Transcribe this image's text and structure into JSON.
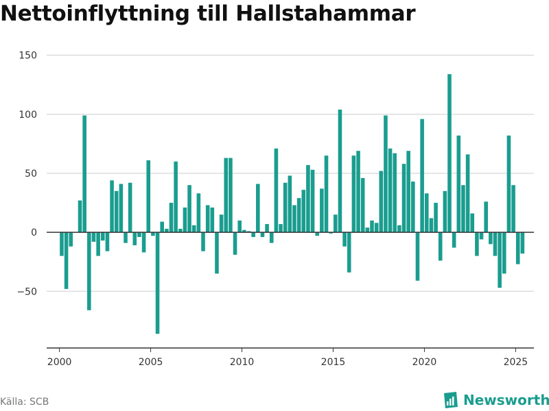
{
  "title": "Nettoinflyttning till Hallstahammar",
  "source": "Källa: SCB",
  "brand": "Newsworthy",
  "colors": {
    "bar": "#1a9d8f",
    "grid": "#dddddd",
    "axis": "#333333"
  },
  "chart_data": {
    "type": "bar",
    "title": "Nettoinflyttning till Hallstahammar",
    "xlabel": "",
    "ylabel": "",
    "ylim": [
      -98,
      162
    ],
    "xlim": [
      1999.3,
      2026.0
    ],
    "grid": true,
    "y_ticks": [
      150,
      100,
      50,
      0,
      -50
    ],
    "y_tick_labels": [
      "150",
      "100",
      "50",
      "0",
      "−50"
    ],
    "x_ticks": [
      2000,
      2005,
      2010,
      2015,
      2020,
      2025
    ],
    "x_tick_labels": [
      "2000",
      "2005",
      "2010",
      "2015",
      "2020",
      "2025"
    ],
    "x": [
      2000.125,
      2000.375,
      2000.625,
      2000.875,
      2001.125,
      2001.375,
      2001.625,
      2001.875,
      2002.125,
      2002.375,
      2002.625,
      2002.875,
      2003.125,
      2003.375,
      2003.625,
      2003.875,
      2004.125,
      2004.375,
      2004.625,
      2004.875,
      2005.125,
      2005.375,
      2005.625,
      2005.875,
      2006.125,
      2006.375,
      2006.625,
      2006.875,
      2007.125,
      2007.375,
      2007.625,
      2007.875,
      2008.125,
      2008.375,
      2008.625,
      2008.875,
      2009.125,
      2009.375,
      2009.625,
      2009.875,
      2010.125,
      2010.375,
      2010.625,
      2010.875,
      2011.125,
      2011.375,
      2011.625,
      2011.875,
      2012.125,
      2012.375,
      2012.625,
      2012.875,
      2013.125,
      2013.375,
      2013.625,
      2013.875,
      2014.125,
      2014.375,
      2014.625,
      2014.875,
      2015.125,
      2015.375,
      2015.625,
      2015.875,
      2016.125,
      2016.375,
      2016.625,
      2016.875,
      2017.125,
      2017.375,
      2017.625,
      2017.875,
      2018.125,
      2018.375,
      2018.625,
      2018.875,
      2019.125,
      2019.375,
      2019.625,
      2019.875,
      2020.125,
      2020.375,
      2020.625,
      2020.875,
      2021.125,
      2021.375,
      2021.625,
      2021.875,
      2022.125,
      2022.375,
      2022.625,
      2022.875,
      2023.125,
      2023.375,
      2023.625,
      2023.875,
      2024.125,
      2024.375,
      2024.625,
      2024.875,
      2025.125,
      2025.375
    ],
    "values": [
      -20,
      -48,
      -12,
      0,
      27,
      99,
      -66,
      -8,
      -20,
      -7,
      -16,
      44,
      35,
      41,
      -9,
      42,
      -11,
      -4,
      -17,
      61,
      -3,
      -86,
      9,
      3,
      25,
      60,
      3,
      21,
      40,
      6,
      33,
      -16,
      23,
      21,
      -35,
      15,
      63,
      63,
      -19,
      10,
      2,
      1,
      -4,
      41,
      -4,
      7,
      -9,
      71,
      7,
      42,
      48,
      23,
      29,
      36,
      57,
      53,
      -3,
      37,
      65,
      -1,
      15,
      104,
      -12,
      -34,
      65,
      69,
      46,
      4,
      10,
      8,
      52,
      99,
      71,
      67,
      6,
      58,
      69,
      43,
      -41,
      96,
      33,
      12,
      25,
      -24,
      35,
      134,
      -13,
      82,
      40,
      66,
      16,
      -20,
      -6,
      26,
      -10,
      -20,
      -47,
      -35,
      82,
      40,
      -27,
      -18
    ]
  }
}
